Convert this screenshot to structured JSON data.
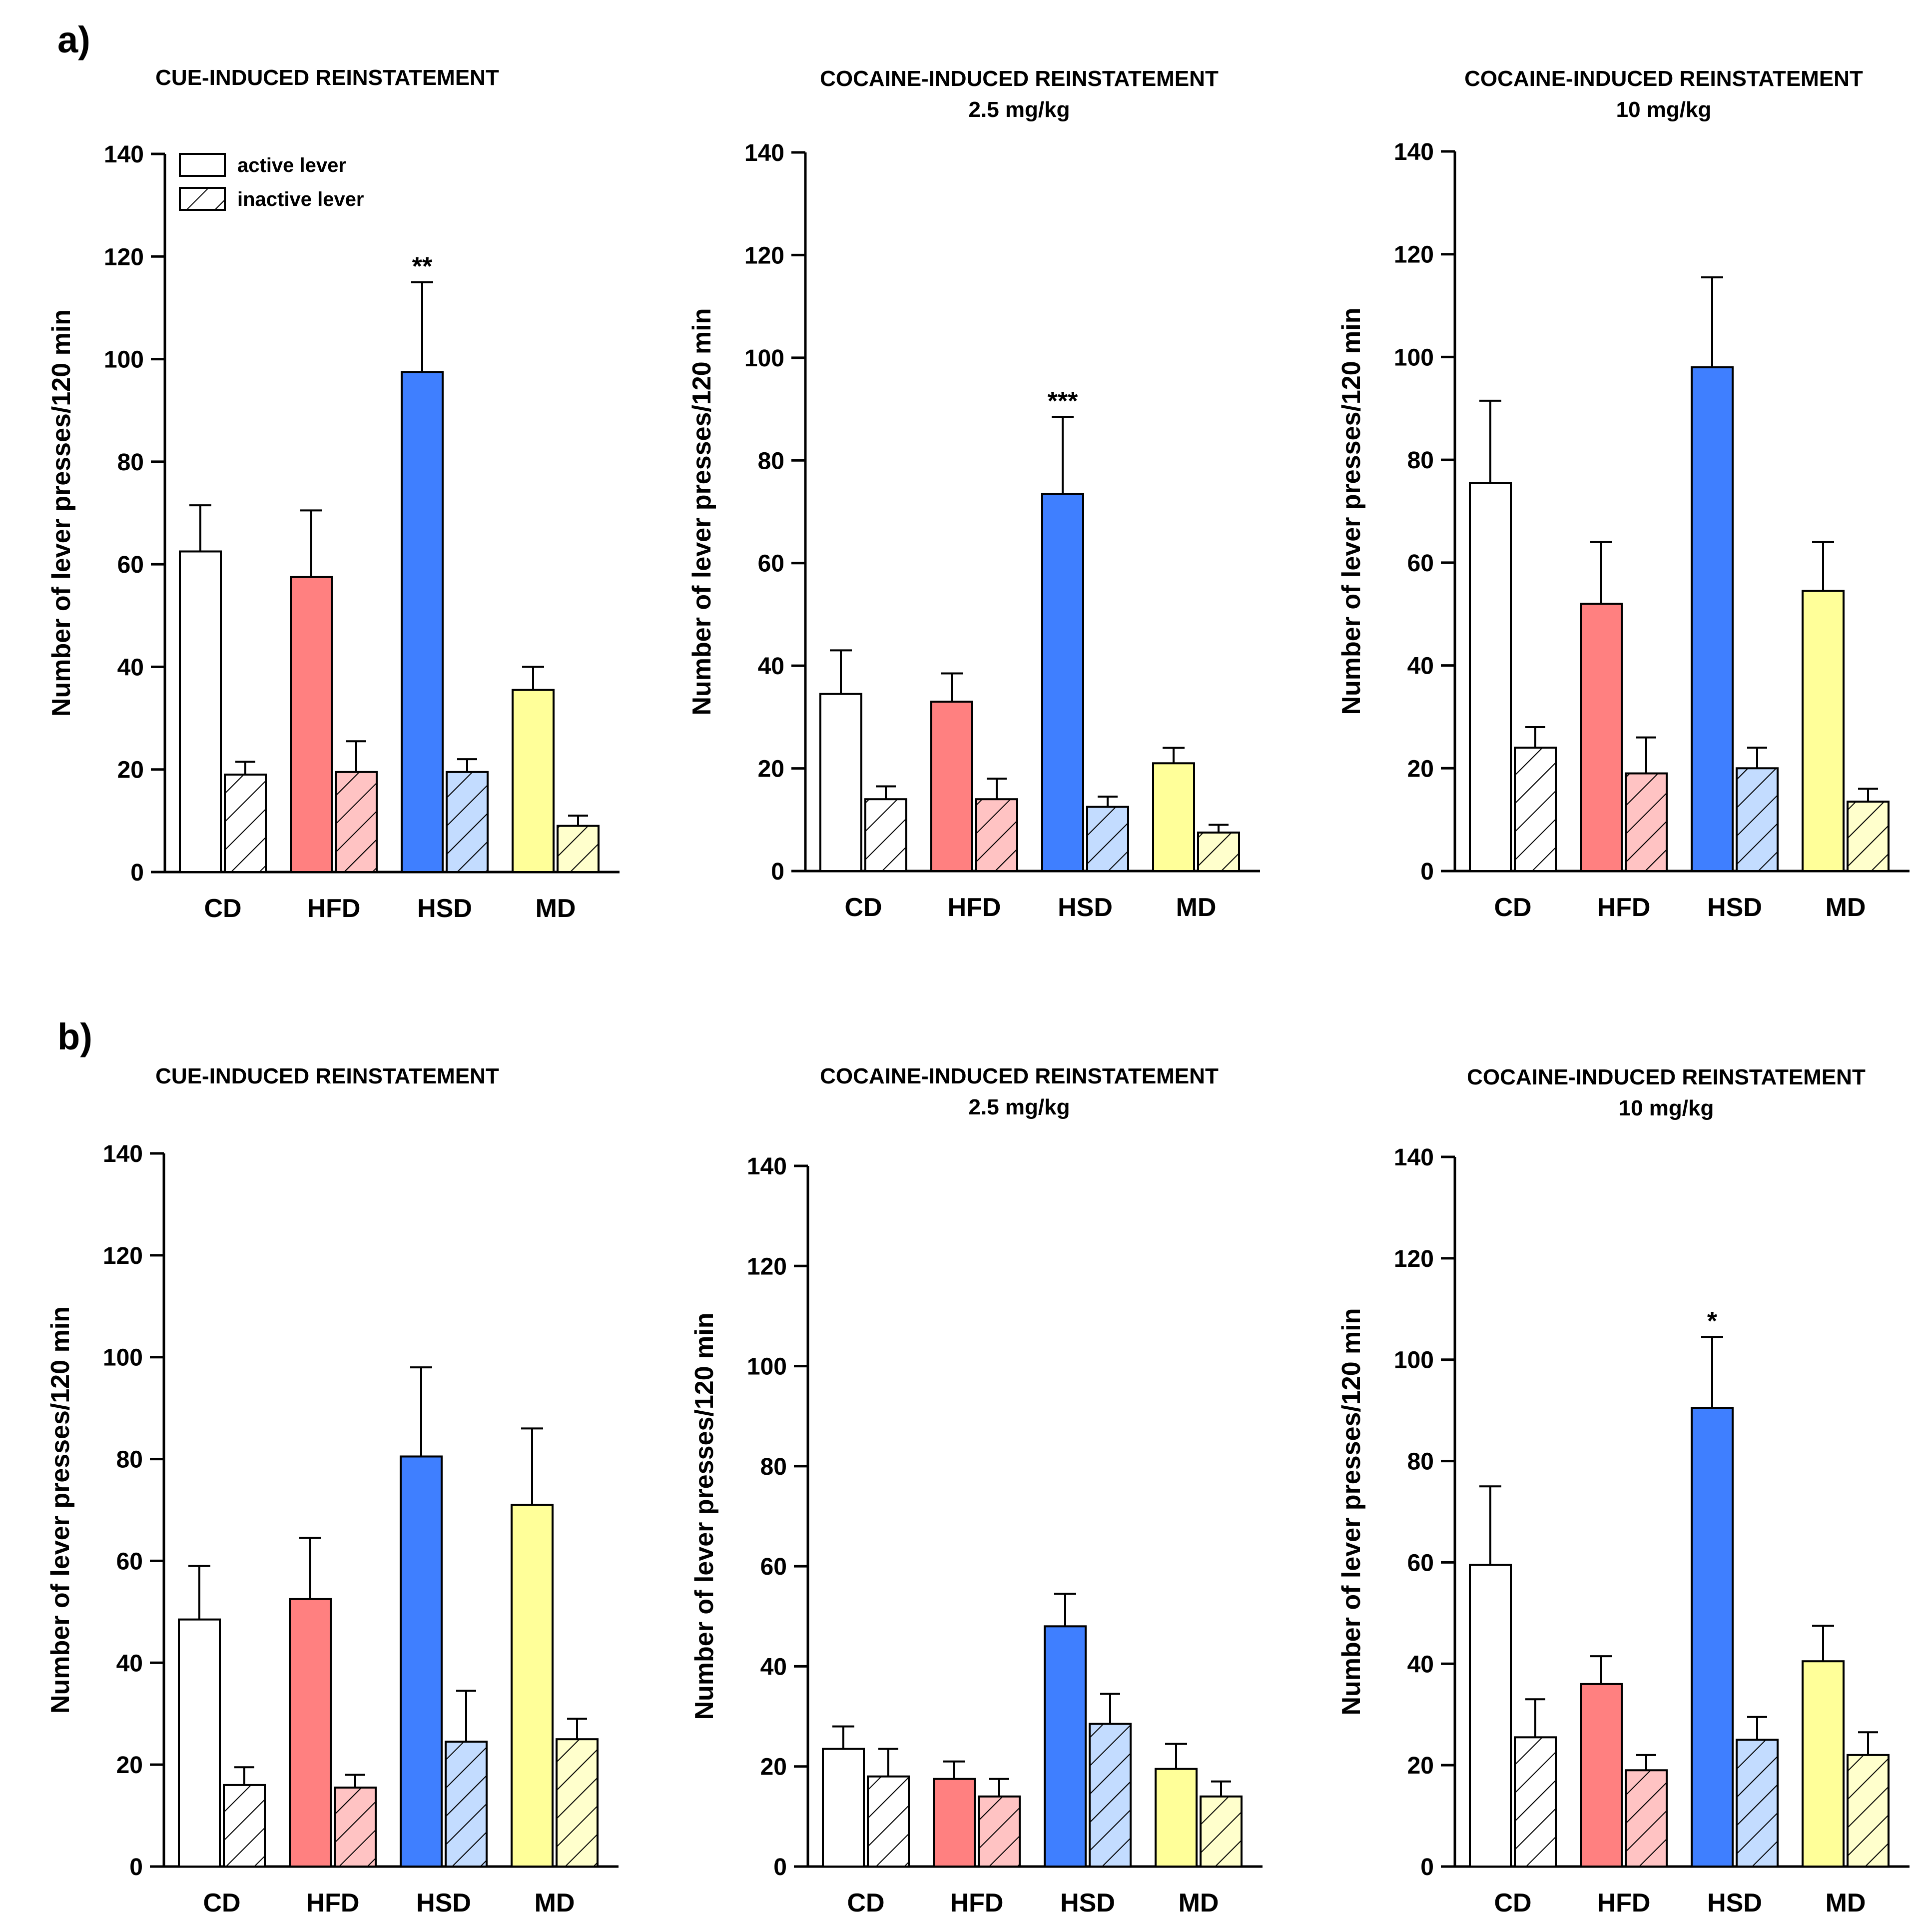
{
  "figure_panels": [
    {
      "label": "a)"
    },
    {
      "label": "b)"
    }
  ],
  "legend": {
    "active_label": "active lever",
    "inactive_label": "inactive lever"
  },
  "colors": {
    "CD": "#ffffff",
    "HFD": "#ff8080",
    "HSD": "#3f7fff",
    "MD": "#ffff99",
    "CD_light": "#ffffff",
    "HFD_light": "#ffc3c3",
    "HSD_light": "#c3dcff",
    "MD_light": "#ffffcc",
    "axis": "#000000"
  },
  "chart_data": [
    {
      "type": "bar",
      "panel": "a)",
      "title": "CUE-INDUCED REINSTATEMENT",
      "subtitle": "",
      "ylabel": "Number of lever presses/120 min",
      "xlabel": "",
      "ylim": [
        0,
        140
      ],
      "yticks": [
        0,
        20,
        40,
        60,
        80,
        100,
        120,
        140
      ],
      "categories": [
        "CD",
        "HFD",
        "HSD",
        "MD"
      ],
      "series": [
        {
          "name": "active lever",
          "values": [
            62.5,
            57.5,
            97.5,
            35.5
          ],
          "errors": [
            9.0,
            13.0,
            17.5,
            4.5
          ]
        },
        {
          "name": "inactive lever",
          "values": [
            19.0,
            19.5,
            19.5,
            9.0
          ],
          "errors": [
            2.5,
            6.0,
            2.5,
            2.0
          ]
        }
      ],
      "annotations": [
        {
          "category": "HSD",
          "series": "active lever",
          "text": "**"
        }
      ],
      "legend": true
    },
    {
      "type": "bar",
      "panel": "a)",
      "title": "COCAINE-INDUCED REINSTATEMENT",
      "subtitle": "2.5 mg/kg",
      "ylabel": "Number of lever presses/120 min",
      "xlabel": "",
      "ylim": [
        0,
        140
      ],
      "yticks": [
        0,
        20,
        40,
        60,
        80,
        100,
        120,
        140
      ],
      "categories": [
        "CD",
        "HFD",
        "HSD",
        "MD"
      ],
      "series": [
        {
          "name": "active lever",
          "values": [
            34.5,
            33.0,
            73.5,
            21.0
          ],
          "errors": [
            8.5,
            5.5,
            15.0,
            3.0
          ]
        },
        {
          "name": "inactive lever",
          "values": [
            14.0,
            14.0,
            12.5,
            7.5
          ],
          "errors": [
            2.5,
            4.0,
            2.0,
            1.5
          ]
        }
      ],
      "annotations": [
        {
          "category": "HSD",
          "series": "active lever",
          "text": "***"
        }
      ],
      "legend": false
    },
    {
      "type": "bar",
      "panel": "a)",
      "title": "COCAINE-INDUCED REINSTATEMENT",
      "subtitle": "10 mg/kg",
      "ylabel": "Number of lever presses/120 min",
      "xlabel": "",
      "ylim": [
        0,
        140
      ],
      "yticks": [
        0,
        20,
        40,
        60,
        80,
        100,
        120,
        140
      ],
      "categories": [
        "CD",
        "HFD",
        "HSD",
        "MD"
      ],
      "series": [
        {
          "name": "active lever",
          "values": [
            75.5,
            52.0,
            98.0,
            54.5
          ],
          "errors": [
            16.0,
            12.0,
            17.5,
            9.5
          ]
        },
        {
          "name": "inactive lever",
          "values": [
            24.0,
            19.0,
            20.0,
            13.5
          ],
          "errors": [
            4.0,
            7.0,
            4.0,
            2.5
          ]
        }
      ],
      "annotations": [],
      "legend": false
    },
    {
      "type": "bar",
      "panel": "b)",
      "title": "CUE-INDUCED REINSTATEMENT",
      "subtitle": "",
      "ylabel": "Number of lever presses/120 min",
      "xlabel": "",
      "ylim": [
        0,
        140
      ],
      "yticks": [
        0,
        20,
        40,
        60,
        80,
        100,
        120,
        140
      ],
      "categories": [
        "CD",
        "HFD",
        "HSD",
        "MD"
      ],
      "series": [
        {
          "name": "active lever",
          "values": [
            48.5,
            52.5,
            80.5,
            71.0
          ],
          "errors": [
            10.5,
            12.0,
            17.5,
            15.0
          ]
        },
        {
          "name": "inactive lever",
          "values": [
            16.0,
            15.5,
            24.5,
            25.0
          ],
          "errors": [
            3.5,
            2.5,
            10.0,
            4.0
          ]
        }
      ],
      "annotations": [],
      "legend": false
    },
    {
      "type": "bar",
      "panel": "b)",
      "title": "COCAINE-INDUCED REINSTATEMENT",
      "subtitle": "2.5 mg/kg",
      "ylabel": "Number of lever presses/120 min",
      "xlabel": "",
      "ylim": [
        0,
        140
      ],
      "yticks": [
        0,
        20,
        40,
        60,
        80,
        100,
        120,
        140
      ],
      "categories": [
        "CD",
        "HFD",
        "HSD",
        "MD"
      ],
      "series": [
        {
          "name": "active lever",
          "values": [
            23.5,
            17.5,
            48.0,
            19.5
          ],
          "errors": [
            4.5,
            3.5,
            6.5,
            5.0
          ]
        },
        {
          "name": "inactive lever",
          "values": [
            18.0,
            14.0,
            28.5,
            14.0
          ],
          "errors": [
            5.5,
            3.5,
            6.0,
            3.0
          ]
        }
      ],
      "annotations": [],
      "legend": false
    },
    {
      "type": "bar",
      "panel": "b)",
      "title": "COCAINE-INDUCED REINSTATEMENT",
      "subtitle": "10 mg/kg",
      "ylabel": "Number of lever presses/120 min",
      "xlabel": "",
      "ylim": [
        0,
        140
      ],
      "yticks": [
        0,
        20,
        40,
        60,
        80,
        100,
        120,
        140
      ],
      "categories": [
        "CD",
        "HFD",
        "HSD",
        "MD"
      ],
      "series": [
        {
          "name": "active lever",
          "values": [
            59.5,
            36.0,
            90.5,
            40.5
          ],
          "errors": [
            15.5,
            5.5,
            14.0,
            7.0
          ]
        },
        {
          "name": "inactive lever",
          "values": [
            25.5,
            19.0,
            25.0,
            22.0
          ],
          "errors": [
            7.5,
            3.0,
            4.5,
            4.5
          ]
        }
      ],
      "annotations": [
        {
          "category": "HSD",
          "series": "active lever",
          "text": "*"
        }
      ],
      "legend": false
    }
  ]
}
